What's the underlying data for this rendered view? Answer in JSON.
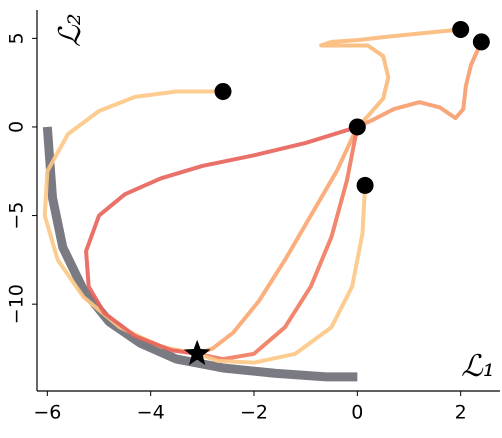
{
  "chart_data": {
    "type": "line",
    "x_label": "ℒ₁",
    "y_label": "ℒ₂",
    "xlim": [
      -6.2,
      2.8
    ],
    "ylim": [
      -14.9,
      6.6
    ],
    "xticks": [
      {
        "value": -6,
        "label": "−6"
      },
      {
        "value": -4,
        "label": "−4"
      },
      {
        "value": -2,
        "label": "−2"
      },
      0,
      2
    ],
    "yticks": [
      5,
      0,
      {
        "value": -5,
        "label": "−5"
      },
      {
        "value": -10,
        "label": "−10"
      }
    ],
    "series": [
      {
        "color": "#6b6b75",
        "width": 9,
        "x": [
          -6,
          -5.9,
          -5.7,
          -5.3,
          -4.8,
          -4.2,
          -3.5,
          -2.6,
          -1.6,
          -0.6,
          0
        ],
        "values": [
          0,
          -4,
          -6.8,
          -9.2,
          -11,
          -12.2,
          -13.1,
          -13.6,
          -13.9,
          -14.1,
          -14.1
        ]
      },
      {
        "color": "#fdc684",
        "width": 4,
        "x": [
          -2.6,
          -3.5,
          -4.3,
          -5,
          -5.6,
          -6,
          -6.05,
          -5.8,
          -5.3,
          -4.6,
          -3.8,
          -3.1
        ],
        "values": [
          2,
          2,
          1.7,
          0.9,
          -0.4,
          -2.5,
          -5,
          -7.5,
          -9.6,
          -11.3,
          -12.4,
          -12.8
        ]
      },
      {
        "color": "#e8605a",
        "width": 4,
        "x": [
          0,
          -1,
          -2,
          -3,
          -3.8,
          -4.5,
          -5,
          -5.25,
          -5.2,
          -4.9,
          -4.3,
          -3.6,
          -3.1
        ],
        "values": [
          0,
          -0.9,
          -1.6,
          -2.2,
          -2.9,
          -3.8,
          -5,
          -7,
          -9,
          -10.5,
          -11.8,
          -12.6,
          -12.8
        ]
      },
      {
        "color": "#f9a66e",
        "width": 4,
        "x": [
          0,
          -0.4,
          -0.9,
          -1.4,
          -1.9,
          -2.4,
          -2.8,
          -3.1
        ],
        "values": [
          0,
          -2.5,
          -5,
          -7.5,
          -9.8,
          -11.6,
          -12.5,
          -12.8
        ]
      },
      {
        "color": "#ef7a5e",
        "width": 4,
        "x": [
          0,
          -0.2,
          -0.5,
          -0.9,
          -1.4,
          -2,
          -2.6,
          -3.1
        ],
        "values": [
          0,
          -3,
          -6.2,
          -9,
          -11.3,
          -12.8,
          -13.1,
          -12.8
        ]
      },
      {
        "color": "#fdc684",
        "width": 4,
        "x": [
          0.15,
          0.1,
          -0.1,
          -0.5,
          -1.2,
          -2,
          -2.7,
          -3.1
        ],
        "values": [
          -3.3,
          -6,
          -9,
          -11.3,
          -12.8,
          -13.3,
          -13.2,
          -12.8
        ]
      },
      {
        "color": "#fbb979",
        "width": 4,
        "x": [
          2,
          1.3,
          0.6,
          0,
          -0.5,
          -0.7,
          0.2,
          0.5,
          0.6,
          0.5,
          0.2,
          0
        ],
        "values": [
          5.5,
          5.3,
          5.1,
          4.9,
          4.8,
          4.6,
          4.6,
          4,
          2.8,
          1.6,
          0.6,
          0
        ]
      },
      {
        "color": "#f79b6a",
        "width": 4,
        "x": [
          2.4,
          2.2,
          2.1,
          2.05,
          1.9,
          1.6,
          1.2,
          0.7,
          0.3,
          0
        ],
        "values": [
          4.8,
          3.5,
          2.3,
          1,
          0.5,
          1.1,
          1.4,
          1,
          0.4,
          0
        ]
      },
      {
        "color": "#000000",
        "marker": "circle",
        "x": [
          -2.6,
          0,
          0.15,
          2,
          2.4
        ],
        "values": [
          2,
          0,
          -3.3,
          5.5,
          4.8
        ]
      },
      {
        "color": "#000000",
        "marker": "star",
        "x": [
          -3.1
        ],
        "values": [
          -12.8
        ]
      }
    ]
  }
}
